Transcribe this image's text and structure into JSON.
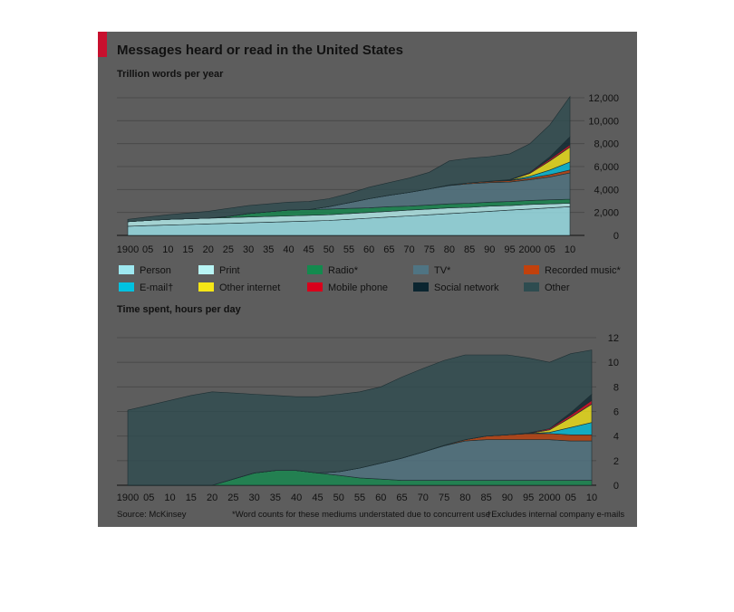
{
  "title": "Messages heard or read in the United States",
  "footer": {
    "source": "Source: McKinsey",
    "note1": "*Word counts for these mediums understated due to concurrent use",
    "note2": "†Excludes internal company e-mails"
  },
  "colors": {
    "Person": "#9ee8f0",
    "Print": "#b8f4f4",
    "Radio*": "#138a4e",
    "TV*": "#4f7483",
    "Recorded music*": "#c2410c",
    "E-mail†": "#00c2e0",
    "Other internet": "#f5e616",
    "Mobile phone": "#d9001b",
    "Social network": "#0b2530",
    "Other": "#2e4c50"
  },
  "chart_data": [
    {
      "type": "area",
      "subtitle": "Trillion words per year",
      "x": [
        1900,
        1905,
        1910,
        1915,
        1920,
        1925,
        1930,
        1935,
        1940,
        1945,
        1950,
        1955,
        1960,
        1965,
        1970,
        1975,
        1980,
        1985,
        1990,
        1995,
        2000,
        2005,
        2010
      ],
      "x_tick_labels": [
        "1900",
        "05",
        "10",
        "15",
        "20",
        "25",
        "30",
        "35",
        "40",
        "45",
        "50",
        "55",
        "60",
        "65",
        "70",
        "75",
        "80",
        "85",
        "90",
        "95",
        "2000",
        "05",
        "10"
      ],
      "ylim": [
        0,
        12000
      ],
      "y_ticks": [
        0,
        2000,
        4000,
        6000,
        8000,
        10000,
        12000
      ],
      "y_tick_labels": [
        "0",
        "2,000",
        "4,000",
        "6,000",
        "8,000",
        "10,000",
        "12,000"
      ],
      "stacked": true,
      "series": [
        {
          "name": "Person",
          "values": [
            800,
            850,
            900,
            950,
            1000,
            1050,
            1100,
            1150,
            1200,
            1250,
            1300,
            1400,
            1500,
            1600,
            1700,
            1800,
            1900,
            2000,
            2100,
            2200,
            2300,
            2400,
            2500
          ]
        },
        {
          "name": "Print",
          "values": [
            400,
            450,
            500,
            500,
            500,
            500,
            500,
            500,
            500,
            500,
            500,
            500,
            500,
            500,
            500,
            500,
            500,
            450,
            450,
            400,
            400,
            350,
            300
          ]
        },
        {
          "name": "Radio*",
          "values": [
            0,
            0,
            0,
            0,
            0,
            100,
            300,
            400,
            500,
            500,
            500,
            450,
            400,
            400,
            350,
            350,
            350,
            350,
            350,
            350,
            350,
            350,
            350
          ]
        },
        {
          "name": "TV*",
          "values": [
            0,
            0,
            0,
            0,
            0,
            0,
            0,
            0,
            0,
            0,
            200,
            500,
            800,
            1000,
            1200,
            1400,
            1600,
            1700,
            1700,
            1700,
            1800,
            2000,
            2300
          ]
        },
        {
          "name": "Recorded music*",
          "values": [
            0,
            0,
            0,
            0,
            0,
            0,
            0,
            0,
            0,
            0,
            0,
            0,
            0,
            0,
            0,
            0,
            50,
            80,
            100,
            120,
            150,
            200,
            250
          ]
        },
        {
          "name": "E-mail†",
          "values": [
            0,
            0,
            0,
            0,
            0,
            0,
            0,
            0,
            0,
            0,
            0,
            0,
            0,
            0,
            0,
            0,
            0,
            0,
            0,
            20,
            150,
            400,
            700
          ]
        },
        {
          "name": "Other internet",
          "values": [
            0,
            0,
            0,
            0,
            0,
            0,
            0,
            0,
            0,
            0,
            0,
            0,
            0,
            0,
            0,
            0,
            0,
            0,
            0,
            30,
            250,
            800,
            1300
          ]
        },
        {
          "name": "Mobile phone",
          "values": [
            0,
            0,
            0,
            0,
            0,
            0,
            0,
            0,
            0,
            0,
            0,
            0,
            0,
            0,
            0,
            0,
            0,
            0,
            20,
            40,
            80,
            150,
            200
          ]
        },
        {
          "name": "Social network",
          "values": [
            0,
            0,
            0,
            0,
            0,
            0,
            0,
            0,
            0,
            0,
            0,
            0,
            0,
            0,
            0,
            0,
            0,
            0,
            0,
            0,
            0,
            200,
            700
          ]
        },
        {
          "name": "Other",
          "values": [
            200,
            300,
            400,
            500,
            600,
            700,
            700,
            700,
            700,
            700,
            700,
            800,
            1000,
            1100,
            1250,
            1450,
            2100,
            2150,
            2150,
            2250,
            2500,
            2800,
            3500
          ]
        }
      ],
      "legend": [
        {
          "name": "Person",
          "label": "Person"
        },
        {
          "name": "Print",
          "label": "Print"
        },
        {
          "name": "Radio*",
          "label": "Radio*"
        },
        {
          "name": "TV*",
          "label": "TV*"
        },
        {
          "name": "Recorded music*",
          "label": "Recorded music*"
        },
        {
          "name": "E-mail†",
          "label": "E-mail†"
        },
        {
          "name": "Other internet",
          "label": "Other internet"
        },
        {
          "name": "Mobile phone",
          "label": "Mobile phone"
        },
        {
          "name": "Social network",
          "label": "Social network"
        },
        {
          "name": "Other",
          "label": "Other"
        }
      ]
    },
    {
      "type": "area",
      "subtitle": "Time spent, hours per day",
      "x": [
        1900,
        1905,
        1910,
        1915,
        1920,
        1925,
        1930,
        1935,
        1940,
        1945,
        1950,
        1955,
        1960,
        1965,
        1970,
        1975,
        1980,
        1985,
        1990,
        1995,
        2000,
        2005,
        2010
      ],
      "x_tick_labels": [
        "1900",
        "05",
        "10",
        "15",
        "20",
        "25",
        "30",
        "35",
        "40",
        "45",
        "50",
        "55",
        "60",
        "65",
        "70",
        "75",
        "80",
        "85",
        "90",
        "95",
        "2000",
        "05",
        "10"
      ],
      "ylim": [
        0,
        12
      ],
      "y_ticks": [
        0,
        2,
        4,
        6,
        8,
        10,
        12
      ],
      "y_tick_labels": [
        "0",
        "2",
        "4",
        "6",
        "8",
        "10",
        "12"
      ],
      "stacked": true,
      "series": [
        {
          "name": "Radio*",
          "values": [
            0,
            0,
            0,
            0,
            0,
            0.5,
            1.0,
            1.2,
            1.2,
            1.0,
            0.8,
            0.6,
            0.5,
            0.4,
            0.4,
            0.4,
            0.4,
            0.4,
            0.4,
            0.4,
            0.4,
            0.4,
            0.4
          ]
        },
        {
          "name": "TV*",
          "values": [
            0,
            0,
            0,
            0,
            0,
            0,
            0,
            0,
            0,
            0,
            0.3,
            0.8,
            1.3,
            1.8,
            2.3,
            2.8,
            3.2,
            3.3,
            3.3,
            3.3,
            3.3,
            3.2,
            3.2
          ]
        },
        {
          "name": "Recorded music*",
          "values": [
            0,
            0,
            0,
            0,
            0,
            0,
            0,
            0,
            0,
            0,
            0,
            0,
            0,
            0,
            0,
            0.05,
            0.1,
            0.3,
            0.4,
            0.5,
            0.5,
            0.5,
            0.5
          ]
        },
        {
          "name": "E-mail†",
          "values": [
            0,
            0,
            0,
            0,
            0,
            0,
            0,
            0,
            0,
            0,
            0,
            0,
            0,
            0,
            0,
            0,
            0,
            0,
            0,
            0,
            0.1,
            0.6,
            1.0
          ]
        },
        {
          "name": "Other internet",
          "values": [
            0,
            0,
            0,
            0,
            0,
            0,
            0,
            0,
            0,
            0,
            0,
            0,
            0,
            0,
            0,
            0,
            0,
            0,
            0,
            0,
            0.2,
            0.8,
            1.5
          ]
        },
        {
          "name": "Mobile phone",
          "values": [
            0,
            0,
            0,
            0,
            0,
            0,
            0,
            0,
            0,
            0,
            0,
            0,
            0,
            0,
            0,
            0,
            0,
            0,
            0,
            0.05,
            0.1,
            0.2,
            0.3
          ]
        },
        {
          "name": "Social network",
          "values": [
            0,
            0,
            0,
            0,
            0,
            0,
            0,
            0,
            0,
            0,
            0,
            0,
            0,
            0,
            0,
            0,
            0,
            0,
            0,
            0,
            0,
            0.2,
            0.5
          ]
        },
        {
          "name": "Other",
          "values": [
            6.1,
            6.5,
            6.9,
            7.3,
            7.6,
            7.0,
            6.4,
            6.1,
            6.0,
            6.2,
            6.3,
            6.2,
            6.2,
            6.6,
            6.8,
            6.9,
            6.9,
            6.6,
            6.5,
            6.1,
            5.4,
            4.8,
            3.6
          ]
        }
      ]
    }
  ]
}
